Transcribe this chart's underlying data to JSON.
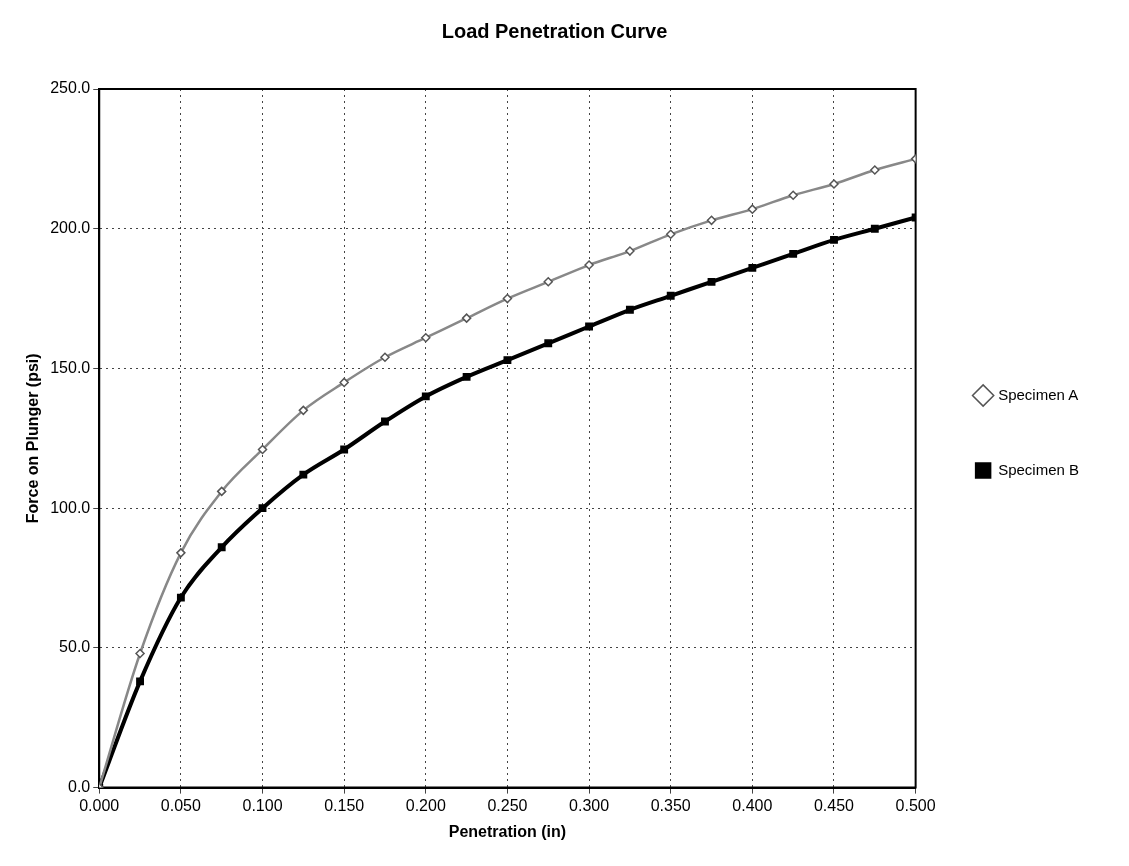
{
  "chart_data": {
    "type": "line",
    "title": "Load Penetration Curve",
    "xlabel": "Penetration (in)",
    "ylabel": "Force on Plunger (psi)",
    "x": [
      0,
      0.025,
      0.05,
      0.075,
      0.1,
      0.125,
      0.15,
      0.175,
      0.2,
      0.225,
      0.25,
      0.275,
      0.3,
      0.325,
      0.35,
      0.375,
      0.4,
      0.425,
      0.45,
      0.475,
      0.5
    ],
    "series": [
      {
        "name": "Specimen A",
        "color": "#888888",
        "marker": "diamond",
        "values": [
          0,
          48,
          84,
          106,
          121,
          135,
          145,
          154,
          161,
          168,
          175,
          181,
          187,
          192,
          198,
          203,
          207,
          212,
          216,
          221,
          225
        ]
      },
      {
        "name": "Specimen B",
        "color": "#000000",
        "marker": "square",
        "values": [
          0,
          38,
          68,
          86,
          100,
          112,
          121,
          131,
          140,
          147,
          153,
          159,
          165,
          171,
          176,
          181,
          186,
          191,
          196,
          200,
          204
        ]
      }
    ],
    "xlim": [
      0,
      0.5
    ],
    "xticks": [
      {
        "value": 0,
        "label": "0.000"
      },
      {
        "value": 0.05,
        "label": "0.050"
      },
      {
        "value": 0.1,
        "label": "0.100"
      },
      {
        "value": 0.15,
        "label": "0.150"
      },
      {
        "value": 0.2,
        "label": "0.200"
      },
      {
        "value": 0.25,
        "label": "0.250"
      },
      {
        "value": 0.3,
        "label": "0.300"
      },
      {
        "value": 0.35,
        "label": "0.350"
      },
      {
        "value": 0.4,
        "label": "0.400"
      },
      {
        "value": 0.45,
        "label": "0.450"
      },
      {
        "value": 0.5,
        "label": "0.500"
      }
    ],
    "ylim": [
      0,
      250
    ],
    "yticks": [
      {
        "value": 0,
        "label": "0.0"
      },
      {
        "value": 50,
        "label": "50.0"
      },
      {
        "value": 100,
        "label": "100.0"
      },
      {
        "value": 150,
        "label": "150.0"
      },
      {
        "value": 200,
        "label": "200.0"
      },
      {
        "value": 250,
        "label": "250.0"
      }
    ],
    "grid": true,
    "legend": "right",
    "line_style": "solid"
  }
}
